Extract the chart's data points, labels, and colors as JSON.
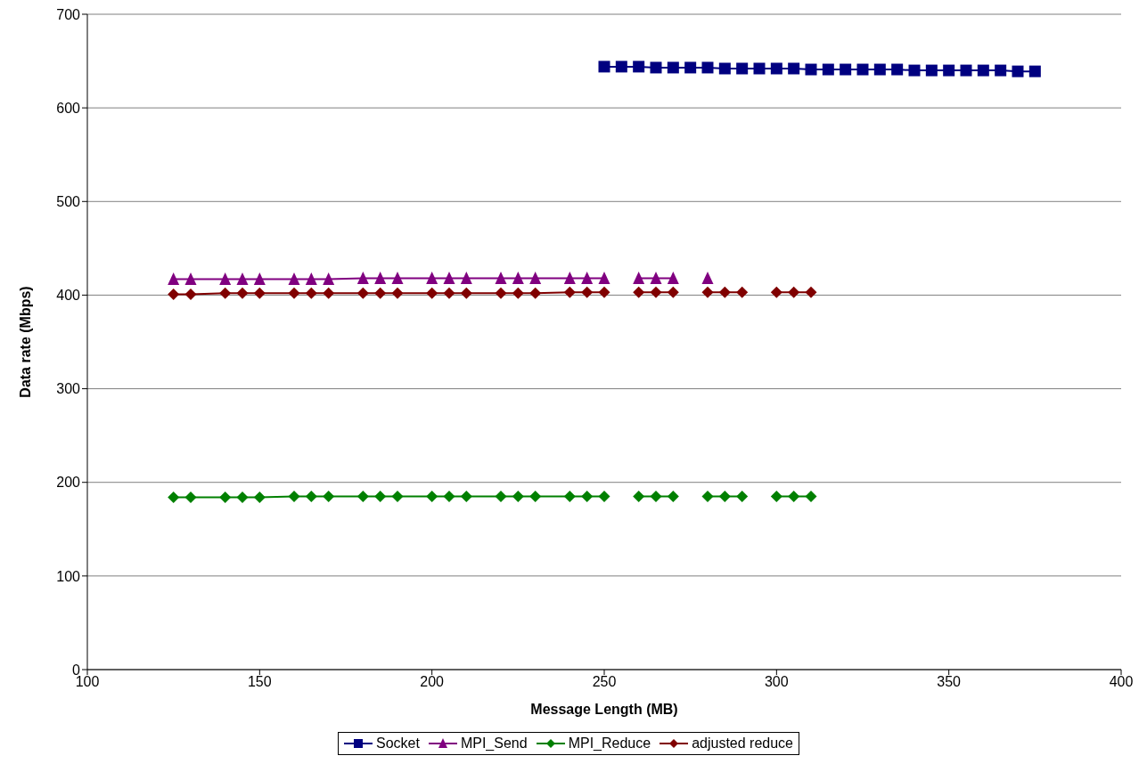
{
  "chart_data": {
    "type": "line",
    "xlabel": "Message Length (MB)",
    "ylabel": "Data rate (Mbps)",
    "xlim": [
      100,
      400
    ],
    "xticks": [
      100,
      150,
      200,
      250,
      300,
      350,
      400
    ],
    "ylim": [
      0,
      700
    ],
    "yticks": [
      0,
      100,
      200,
      300,
      400,
      500,
      600,
      700
    ],
    "grid": "y",
    "legend": "bottom",
    "line_style": "solid",
    "series": [
      {
        "name": "Socket",
        "color": "#000080",
        "marker": "square",
        "x": [
          250,
          255,
          260,
          265,
          270,
          275,
          280,
          285,
          290,
          295,
          300,
          305,
          310,
          315,
          320,
          325,
          330,
          335,
          340,
          345,
          350,
          355,
          360,
          365,
          370,
          375
        ],
        "values": [
          644,
          644,
          644,
          643,
          643,
          643,
          643,
          642,
          642,
          642,
          642,
          642,
          641,
          641,
          641,
          641,
          641,
          641,
          640,
          640,
          640,
          640,
          640,
          640,
          639,
          639
        ]
      },
      {
        "name": "MPI_Send",
        "color": "#800080",
        "marker": "triangle",
        "x": [
          125,
          130,
          140,
          145,
          150,
          160,
          165,
          170,
          180,
          185,
          190,
          200,
          205,
          210,
          220,
          225,
          230,
          240,
          245,
          250,
          255,
          260,
          265,
          270,
          275,
          280
        ],
        "values": [
          417,
          417,
          417,
          417,
          417,
          417,
          417,
          417,
          418,
          418,
          418,
          418,
          418,
          418,
          418,
          418,
          418,
          418,
          418,
          418,
          null,
          418,
          418,
          418,
          null,
          418
        ]
      },
      {
        "name": "MPI_Reduce",
        "color": "#008000",
        "marker": "diamond",
        "x": [
          125,
          130,
          140,
          145,
          150,
          160,
          165,
          170,
          180,
          185,
          190,
          200,
          205,
          210,
          220,
          225,
          230,
          240,
          245,
          250,
          255,
          260,
          265,
          270,
          275,
          280,
          285,
          290,
          295,
          300,
          305,
          310
        ],
        "values": [
          184,
          184,
          184,
          184,
          184,
          185,
          185,
          185,
          185,
          185,
          185,
          185,
          185,
          185,
          185,
          185,
          185,
          185,
          185,
          185,
          null,
          185,
          185,
          185,
          null,
          185,
          185,
          185,
          null,
          185,
          185,
          185
        ]
      },
      {
        "name": "adjusted reduce",
        "color": "#800000",
        "marker": "diamond",
        "x": [
          125,
          130,
          140,
          145,
          150,
          160,
          165,
          170,
          180,
          185,
          190,
          200,
          205,
          210,
          220,
          225,
          230,
          240,
          245,
          250,
          255,
          260,
          265,
          270,
          275,
          280,
          285,
          290,
          295,
          300,
          305,
          310
        ],
        "values": [
          401,
          401,
          402,
          402,
          402,
          402,
          402,
          402,
          402,
          402,
          402,
          402,
          402,
          402,
          402,
          402,
          402,
          403,
          403,
          403,
          null,
          403,
          403,
          403,
          null,
          403,
          403,
          403,
          null,
          403,
          403,
          403
        ]
      }
    ]
  }
}
